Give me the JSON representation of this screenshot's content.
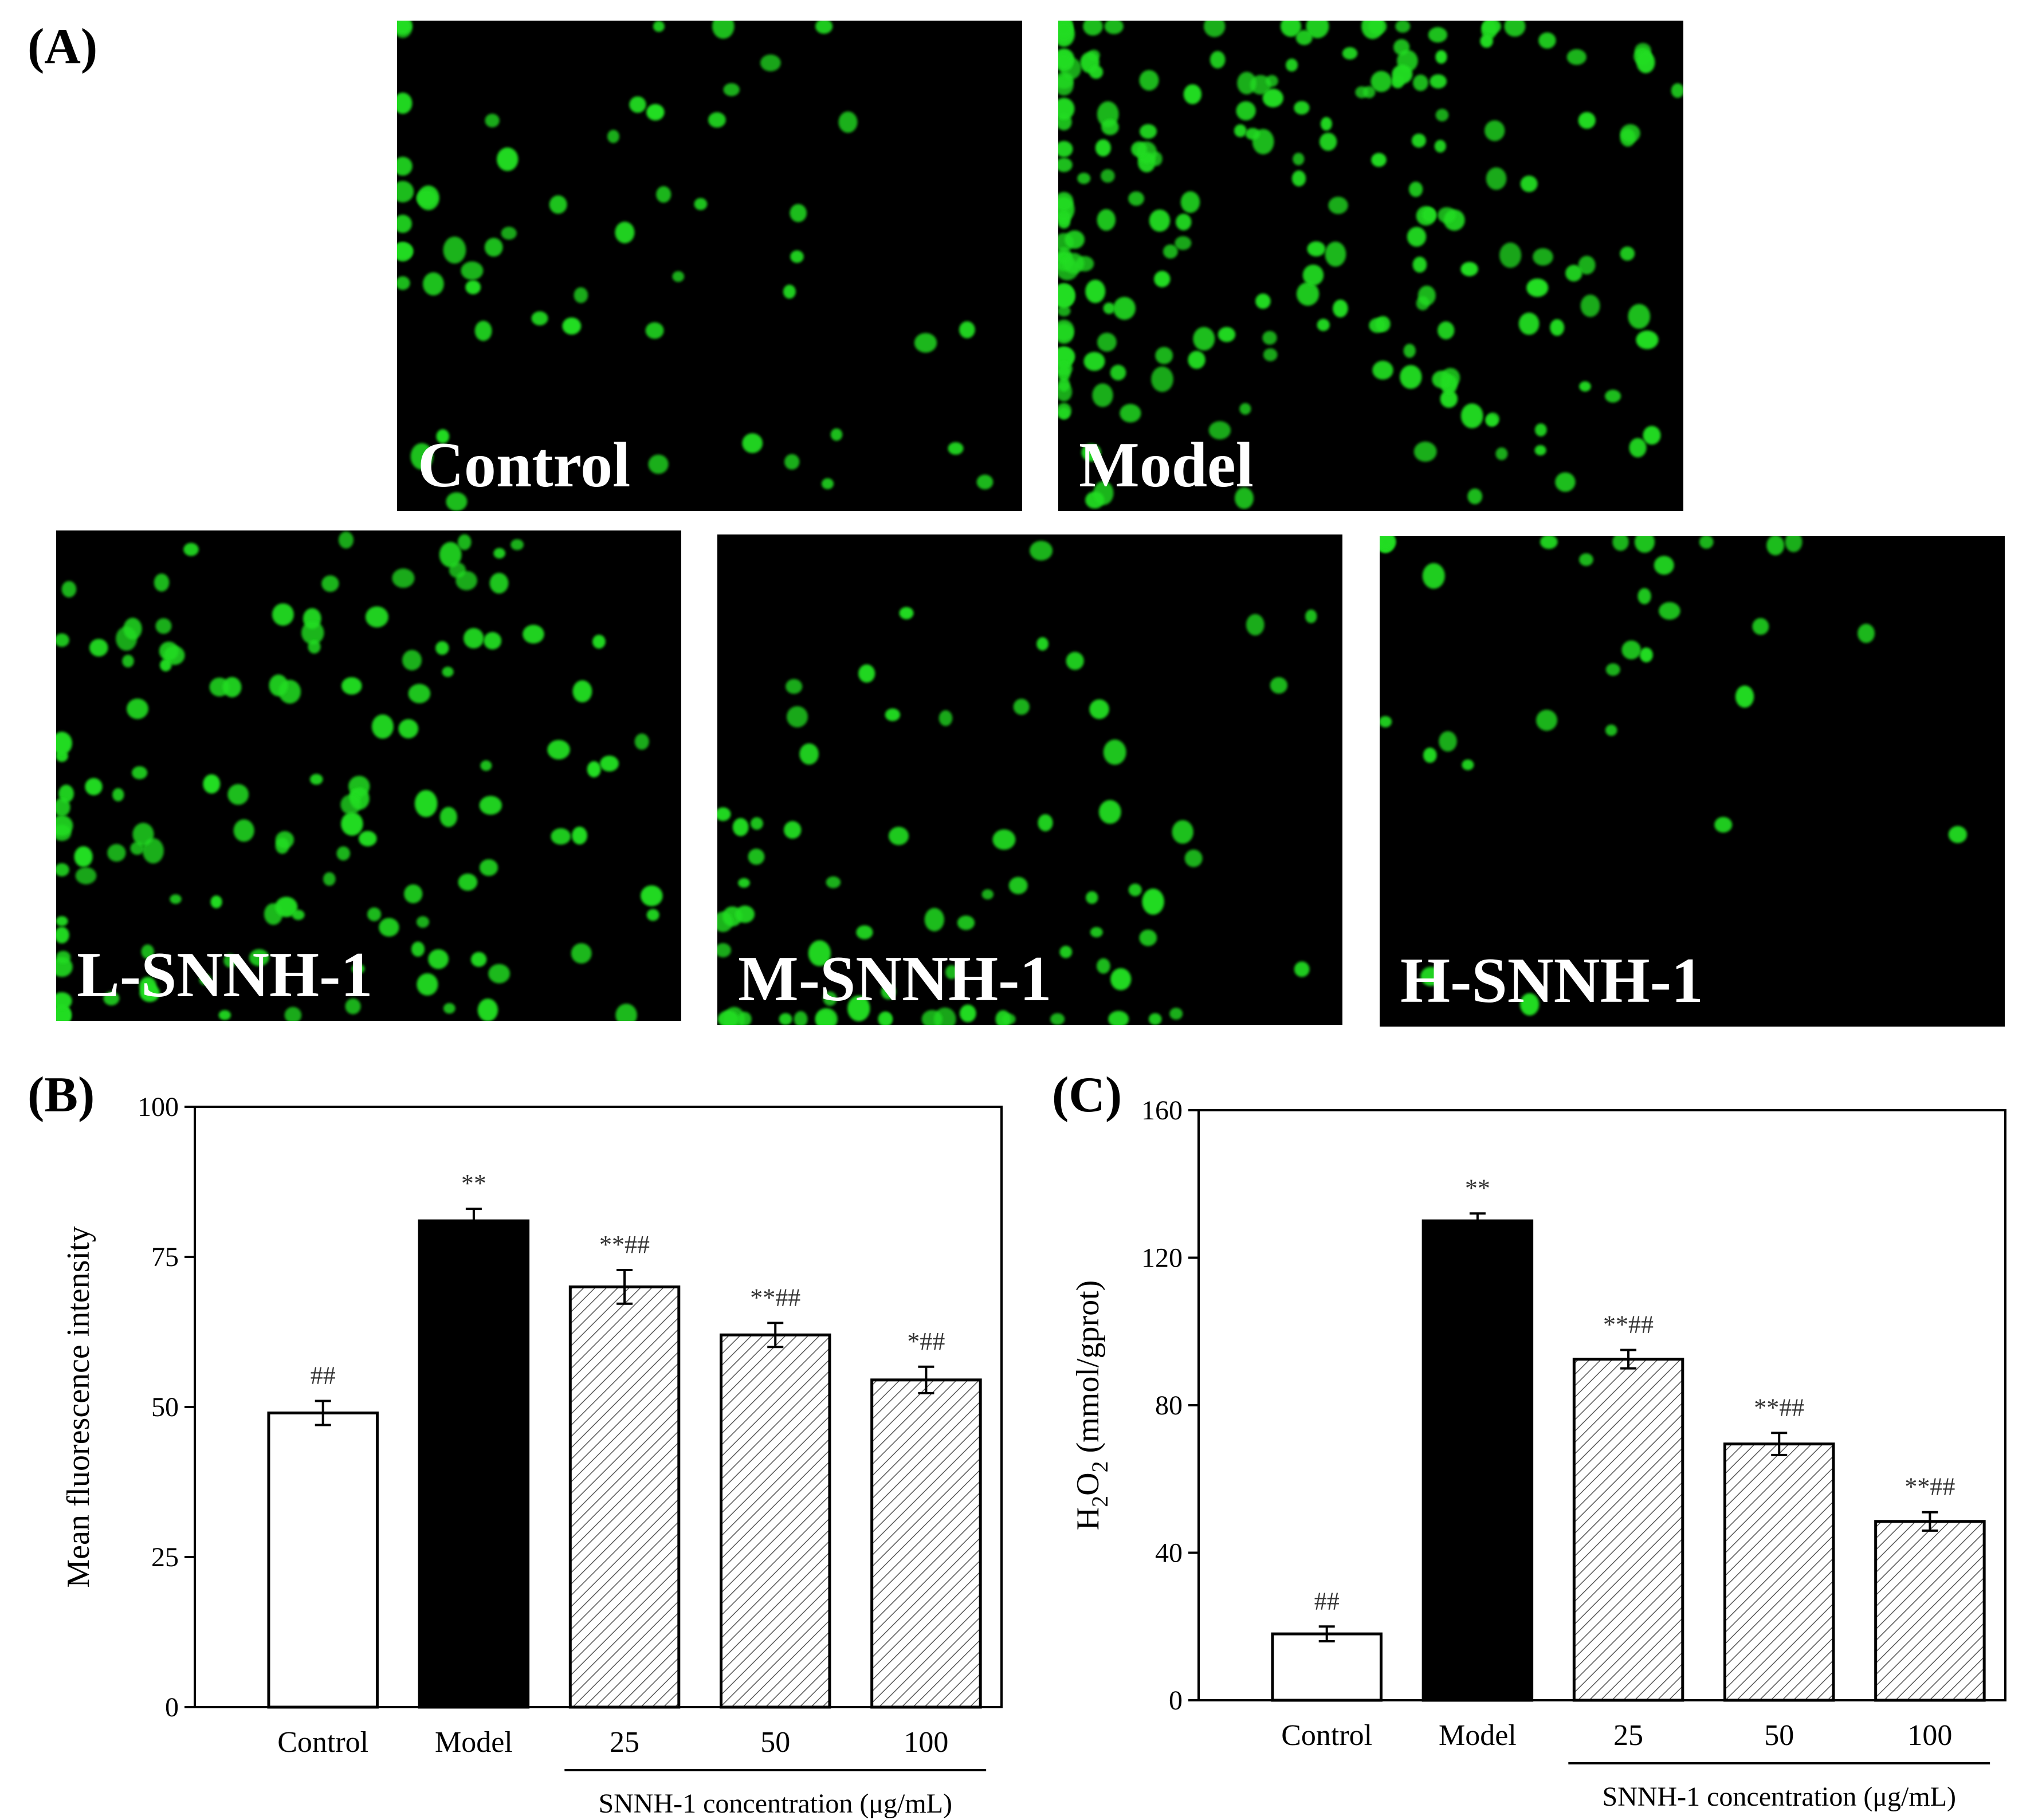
{
  "panels": {
    "a_label": "(A)",
    "b_label": "(B)",
    "c_label": "(C)"
  },
  "micrographs": [
    {
      "label": "Control"
    },
    {
      "label": "Model"
    },
    {
      "label": "L-SNNH-1"
    },
    {
      "label": "M-SNNH-1"
    },
    {
      "label": "H-SNNH-1"
    }
  ],
  "colors": {
    "fluorescence": "#22dd22",
    "micrograph_background": "#000000",
    "control_bar": "#ffffff",
    "model_bar": "#000000",
    "treatment_bar_hatch": "#555555"
  },
  "chart_data": [
    {
      "type": "bar",
      "panel": "(B)",
      "categories": [
        "Control",
        "Model",
        "25",
        "50",
        "100"
      ],
      "values": [
        49,
        81,
        70,
        62,
        54.5
      ],
      "errors": [
        2,
        2,
        2.8,
        2,
        2.2
      ],
      "annotations": [
        "##",
        "**",
        "**##",
        "**##",
        "*##"
      ],
      "bar_styles": [
        "white",
        "black",
        "hatched",
        "hatched",
        "hatched"
      ],
      "ylabel": "Mean fluorescence intensity",
      "xlabel": "SNNH-1 concentration (μg/mL)",
      "ylim": [
        0,
        100
      ],
      "yticks": [
        0,
        25,
        50,
        75,
        100
      ],
      "grid": false
    },
    {
      "type": "bar",
      "panel": "(C)",
      "categories": [
        "Control",
        "Model",
        "25",
        "50",
        "100"
      ],
      "values": [
        18,
        130,
        92.5,
        69.5,
        48.5
      ],
      "errors": [
        2,
        2,
        2.5,
        3,
        2.5
      ],
      "annotations": [
        "##",
        "**",
        "**##",
        "**##",
        "**##"
      ],
      "bar_styles": [
        "white",
        "black",
        "hatched",
        "hatched",
        "hatched"
      ],
      "ylabel": "H2O2 (mmol/gprot)",
      "xlabel": "SNNH-1 concentration (μg/mL)",
      "ylim": [
        0,
        160
      ],
      "yticks": [
        0,
        40,
        80,
        120,
        160
      ],
      "grid": false
    }
  ]
}
